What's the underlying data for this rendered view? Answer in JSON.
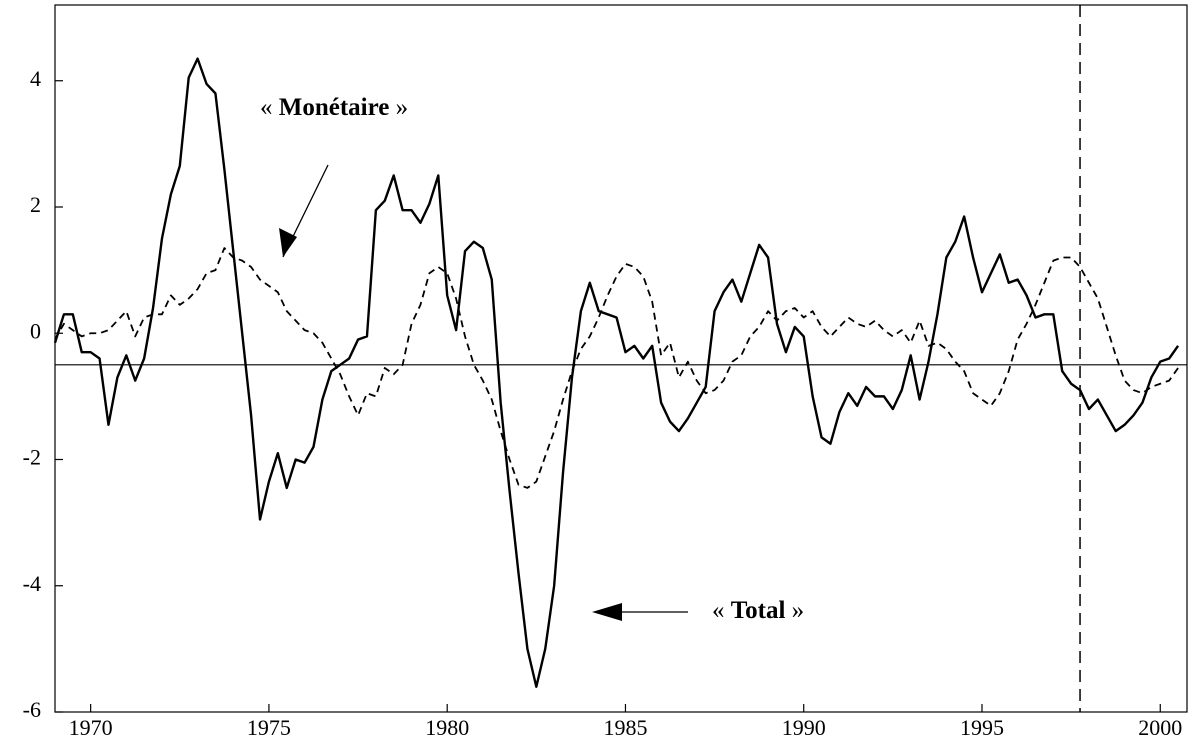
{
  "chart_data": {
    "type": "line",
    "x": [
      1969,
      1969.25,
      1969.5,
      1969.75,
      1970,
      1970.25,
      1970.5,
      1970.75,
      1971,
      1971.25,
      1971.5,
      1971.75,
      1972,
      1972.25,
      1972.5,
      1972.75,
      1973,
      1973.25,
      1973.5,
      1973.75,
      1974,
      1974.25,
      1974.5,
      1974.75,
      1975,
      1975.25,
      1975.5,
      1975.75,
      1976,
      1976.25,
      1976.5,
      1976.75,
      1977,
      1977.25,
      1977.5,
      1977.75,
      1978,
      1978.25,
      1978.5,
      1978.75,
      1979,
      1979.25,
      1979.5,
      1979.75,
      1980,
      1980.25,
      1980.5,
      1980.75,
      1981,
      1981.25,
      1981.5,
      1981.75,
      1982,
      1982.25,
      1982.5,
      1982.75,
      1983,
      1983.25,
      1983.5,
      1983.75,
      1984,
      1984.25,
      1984.5,
      1984.75,
      1985,
      1985.25,
      1985.5,
      1985.75,
      1986,
      1986.25,
      1986.5,
      1986.75,
      1987,
      1987.25,
      1987.5,
      1987.75,
      1988,
      1988.25,
      1988.5,
      1988.75,
      1989,
      1989.25,
      1989.5,
      1989.75,
      1990,
      1990.25,
      1990.5,
      1990.75,
      1991,
      1991.25,
      1991.5,
      1991.75,
      1992,
      1992.25,
      1992.5,
      1992.75,
      1993,
      1993.25,
      1993.5,
      1993.75,
      1994,
      1994.25,
      1994.5,
      1994.75,
      1995,
      1995.25,
      1995.5,
      1995.75,
      1996,
      1996.25,
      1996.5,
      1996.75,
      1997,
      1997.25,
      1997.5,
      1997.75,
      1998,
      1998.25,
      1998.5,
      1998.75,
      1999,
      1999.25,
      1999.5,
      1999.75,
      2000,
      2000.25,
      2000.5
    ],
    "series": [
      {
        "name": "Total",
        "color": "#000000",
        "dash": false,
        "values": [
          -0.15,
          0.3,
          0.3,
          -0.3,
          -0.3,
          -0.4,
          -1.45,
          -0.7,
          -0.35,
          -0.75,
          -0.4,
          0.4,
          1.5,
          2.2,
          2.65,
          4.05,
          4.35,
          3.95,
          3.8,
          2.6,
          1.3,
          0,
          -1.3,
          -2.95,
          -2.35,
          -1.9,
          -2.45,
          -2.0,
          -2.05,
          -1.8,
          -1.05,
          -0.6,
          -0.5,
          -0.4,
          -0.1,
          -0.05,
          1.95,
          2.1,
          2.5,
          1.95,
          1.95,
          1.75,
          2.05,
          2.5,
          0.6,
          0.05,
          1.3,
          1.45,
          1.35,
          0.85,
          -1.1,
          -2.5,
          -3.8,
          -5.0,
          -5.6,
          -5.0,
          -4.0,
          -2.2,
          -0.7,
          0.35,
          0.8,
          0.35,
          0.3,
          0.25,
          -0.3,
          -0.2,
          -0.4,
          -0.2,
          -1.1,
          -1.4,
          -1.55,
          -1.35,
          -1.1,
          -0.85,
          0.35,
          0.65,
          0.85,
          0.5,
          0.95,
          1.4,
          1.2,
          0.15,
          -0.3,
          0.1,
          -0.05,
          -1.0,
          -1.65,
          -1.75,
          -1.25,
          -0.95,
          -1.15,
          -0.85,
          -1.0,
          -1.0,
          -1.2,
          -0.9,
          -0.35,
          -1.05,
          -0.45,
          0.3,
          1.2,
          1.45,
          1.85,
          1.2,
          0.65,
          0.95,
          1.25,
          0.8,
          0.85,
          0.6,
          0.25,
          0.3,
          0.3,
          -0.6,
          -0.8,
          -0.9,
          -1.2,
          -1.05,
          -1.3,
          -1.55,
          -1.45,
          -1.3,
          -1.1,
          -0.7,
          -0.45,
          -0.4,
          -0.2
        ]
      },
      {
        "name": "Monétaire",
        "color": "#000000",
        "dash": true,
        "values": [
          -0.1,
          0.15,
          0.05,
          -0.05,
          0,
          0,
          0.05,
          0.2,
          0.35,
          -0.05,
          0.25,
          0.3,
          0.3,
          0.6,
          0.45,
          0.55,
          0.7,
          0.95,
          1.0,
          1.35,
          1.2,
          1.15,
          1.05,
          0.85,
          0.75,
          0.65,
          0.35,
          0.2,
          0.05,
          0,
          -0.15,
          -0.4,
          -0.65,
          -1.0,
          -1.3,
          -0.95,
          -1.0,
          -0.55,
          -0.65,
          -0.5,
          0.15,
          0.45,
          0.95,
          1.05,
          0.95,
          0.55,
          -0.05,
          -0.5,
          -0.75,
          -1.05,
          -1.55,
          -2.0,
          -2.4,
          -2.45,
          -2.35,
          -1.95,
          -1.55,
          -1.05,
          -0.6,
          -0.25,
          -0.05,
          0.25,
          0.6,
          0.9,
          1.1,
          1.05,
          0.9,
          0.5,
          -0.35,
          -0.15,
          -0.7,
          -0.45,
          -0.75,
          -0.95,
          -0.9,
          -0.75,
          -0.45,
          -0.35,
          -0.05,
          0.1,
          0.35,
          0.2,
          0.35,
          0.4,
          0.25,
          0.35,
          0.1,
          -0.05,
          0.1,
          0.25,
          0.15,
          0.1,
          0.2,
          0.05,
          -0.05,
          0.05,
          -0.15,
          0.2,
          -0.2,
          -0.15,
          -0.25,
          -0.45,
          -0.6,
          -0.95,
          -1.05,
          -1.15,
          -0.95,
          -0.6,
          -0.1,
          0.15,
          0.45,
          0.8,
          1.15,
          1.2,
          1.2,
          1.05,
          0.8,
          0.55,
          0.1,
          -0.35,
          -0.75,
          -0.9,
          -0.95,
          -0.85,
          -0.8,
          -0.75,
          -0.55
        ]
      }
    ],
    "xlim": [
      1969,
      2000.75
    ],
    "ylim": [
      -6,
      5.2
    ],
    "xticks": [
      1970,
      1975,
      1980,
      1985,
      1990,
      1995,
      2000
    ],
    "yticks": [
      4,
      2,
      0,
      -2,
      -4,
      -6
    ],
    "hline": -0.5,
    "vline": 1997.75,
    "annotations": [
      {
        "open": "«",
        "text": "Monétaire",
        "close": "»"
      },
      {
        "open": "«",
        "text": "Total",
        "close": "»"
      }
    ]
  }
}
